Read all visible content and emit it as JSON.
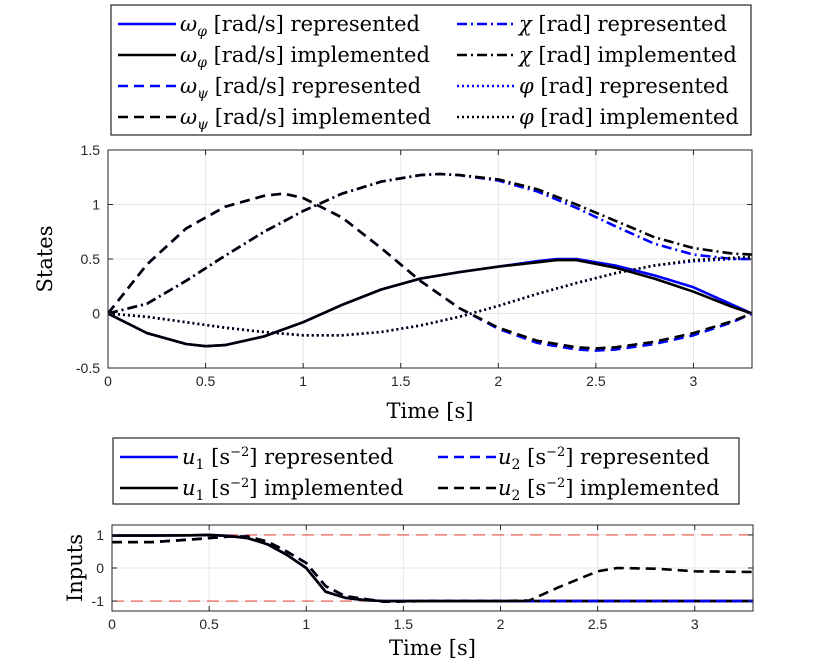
{
  "colors": {
    "represented": "#0000ff",
    "implemented": "#000000",
    "bounds": "#e8504a",
    "grid": "#e6e6e6",
    "axis": "#262626"
  },
  "chart_data": [
    {
      "id": "states",
      "type": "line",
      "xlabel": "Time [s]",
      "ylabel": "States",
      "xlim": [
        0,
        3.3
      ],
      "ylim": [
        -0.5,
        1.5
      ],
      "xticks": [
        0,
        0.5,
        1,
        1.5,
        2,
        2.5,
        3
      ],
      "xtick_labels": [
        "0",
        "0.5",
        "1",
        "1.5",
        "2",
        "2.5",
        "3"
      ],
      "yticks": [
        -0.5,
        0,
        0.5,
        1,
        1.5
      ],
      "ytick_labels": [
        "-0.5",
        "0",
        "0.5",
        "1",
        "1.5"
      ],
      "grid": true,
      "legend_position": "top, outside, two columns",
      "legend": [
        {
          "symbol": "ω",
          "sub": "φ",
          "unit": " [rad/s]",
          "label": "represented",
          "style": "solid",
          "color": "#0000ff"
        },
        {
          "symbol": "ω",
          "sub": "φ",
          "unit": " [rad/s]",
          "label": "implemented",
          "style": "solid",
          "color": "#000000"
        },
        {
          "symbol": "ω",
          "sub": "ψ",
          "unit": " [rad/s]",
          "label": "represented",
          "style": "dashed",
          "color": "#0000ff"
        },
        {
          "symbol": "ω",
          "sub": "ψ",
          "unit": " [rad/s]",
          "label": "implemented",
          "style": "dashed",
          "color": "#000000"
        },
        {
          "symbol": "χ",
          "sub": "",
          "unit": " [rad]",
          "label": "represented",
          "style": "dashdot",
          "color": "#0000ff"
        },
        {
          "symbol": "χ",
          "sub": "",
          "unit": " [rad]",
          "label": "implemented",
          "style": "dashdot",
          "color": "#000000"
        },
        {
          "symbol": "φ",
          "sub": "",
          "unit": " [rad]",
          "label": "represented",
          "style": "dotted",
          "color": "#0000ff"
        },
        {
          "symbol": "φ",
          "sub": "",
          "unit": " [rad]",
          "label": "implemented",
          "style": "dotted",
          "color": "#000000"
        }
      ],
      "series": [
        {
          "name": "ω_φ [rad/s] represented",
          "style": "solid",
          "color": "#0000ff",
          "x": [
            0,
            0.2,
            0.4,
            0.5,
            0.6,
            0.8,
            1.0,
            1.2,
            1.4,
            1.6,
            1.8,
            2.0,
            2.2,
            2.3,
            2.4,
            2.6,
            2.8,
            3.0,
            3.2,
            3.3
          ],
          "y": [
            0,
            -0.18,
            -0.28,
            -0.3,
            -0.29,
            -0.21,
            -0.08,
            0.08,
            0.22,
            0.32,
            0.38,
            0.43,
            0.48,
            0.5,
            0.5,
            0.44,
            0.35,
            0.24,
            0.08,
            0
          ]
        },
        {
          "name": "ω_φ [rad/s] implemented",
          "style": "solid",
          "color": "#000000",
          "x": [
            0,
            0.2,
            0.4,
            0.5,
            0.6,
            0.8,
            1.0,
            1.2,
            1.4,
            1.6,
            1.8,
            2.0,
            2.2,
            2.3,
            2.4,
            2.6,
            2.8,
            3.0,
            3.2,
            3.3
          ],
          "y": [
            0,
            -0.18,
            -0.28,
            -0.3,
            -0.29,
            -0.21,
            -0.08,
            0.08,
            0.22,
            0.32,
            0.38,
            0.43,
            0.47,
            0.49,
            0.49,
            0.42,
            0.32,
            0.2,
            0.06,
            0
          ]
        },
        {
          "name": "ω_ψ [rad/s] represented",
          "style": "dashed",
          "color": "#0000ff",
          "x": [
            0,
            0.2,
            0.4,
            0.6,
            0.8,
            0.9,
            1.0,
            1.2,
            1.4,
            1.6,
            1.8,
            2.0,
            2.2,
            2.4,
            2.5,
            2.6,
            2.8,
            3.0,
            3.2,
            3.3
          ],
          "y": [
            0,
            0.45,
            0.78,
            0.98,
            1.08,
            1.1,
            1.06,
            0.88,
            0.6,
            0.3,
            0.05,
            -0.14,
            -0.27,
            -0.33,
            -0.34,
            -0.33,
            -0.28,
            -0.2,
            -0.08,
            0
          ]
        },
        {
          "name": "ω_ψ [rad/s] implemented",
          "style": "dashed",
          "color": "#000000",
          "x": [
            0,
            0.2,
            0.4,
            0.6,
            0.8,
            0.9,
            1.0,
            1.2,
            1.4,
            1.6,
            1.8,
            2.0,
            2.2,
            2.4,
            2.5,
            2.6,
            2.8,
            3.0,
            3.2,
            3.3
          ],
          "y": [
            0,
            0.45,
            0.78,
            0.98,
            1.08,
            1.1,
            1.06,
            0.88,
            0.6,
            0.3,
            0.05,
            -0.13,
            -0.25,
            -0.31,
            -0.32,
            -0.31,
            -0.26,
            -0.18,
            -0.07,
            0
          ]
        },
        {
          "name": "χ [rad] represented",
          "style": "dashdot",
          "color": "#0000ff",
          "x": [
            0,
            0.2,
            0.4,
            0.6,
            0.8,
            1.0,
            1.2,
            1.4,
            1.6,
            1.7,
            1.8,
            2.0,
            2.2,
            2.4,
            2.6,
            2.8,
            3.0,
            3.2,
            3.3
          ],
          "y": [
            0,
            0.09,
            0.3,
            0.53,
            0.75,
            0.94,
            1.1,
            1.21,
            1.27,
            1.28,
            1.27,
            1.22,
            1.12,
            0.97,
            0.8,
            0.64,
            0.54,
            0.5,
            0.5
          ]
        },
        {
          "name": "χ [rad] implemented",
          "style": "dashdot",
          "color": "#000000",
          "x": [
            0,
            0.2,
            0.4,
            0.6,
            0.8,
            1.0,
            1.2,
            1.4,
            1.6,
            1.7,
            1.8,
            2.0,
            2.2,
            2.4,
            2.6,
            2.8,
            3.0,
            3.2,
            3.3
          ],
          "y": [
            0,
            0.09,
            0.3,
            0.53,
            0.75,
            0.94,
            1.1,
            1.21,
            1.27,
            1.28,
            1.27,
            1.23,
            1.14,
            1.0,
            0.85,
            0.7,
            0.6,
            0.55,
            0.54
          ]
        },
        {
          "name": "φ [rad] represented",
          "style": "dotted",
          "color": "#0000ff",
          "x": [
            0,
            0.2,
            0.4,
            0.6,
            0.8,
            1.0,
            1.1,
            1.2,
            1.4,
            1.6,
            1.8,
            2.0,
            2.2,
            2.4,
            2.6,
            2.8,
            3.0,
            3.2,
            3.3
          ],
          "y": [
            0,
            -0.03,
            -0.08,
            -0.13,
            -0.17,
            -0.2,
            -0.2,
            -0.2,
            -0.17,
            -0.11,
            -0.03,
            0.07,
            0.18,
            0.28,
            0.37,
            0.44,
            0.48,
            0.5,
            0.5
          ]
        },
        {
          "name": "φ [rad] implemented",
          "style": "dotted",
          "color": "#000000",
          "x": [
            0,
            0.2,
            0.4,
            0.6,
            0.8,
            1.0,
            1.1,
            1.2,
            1.4,
            1.6,
            1.8,
            2.0,
            2.2,
            2.4,
            2.6,
            2.8,
            3.0,
            3.2,
            3.3
          ],
          "y": [
            0,
            -0.03,
            -0.08,
            -0.13,
            -0.17,
            -0.2,
            -0.2,
            -0.2,
            -0.17,
            -0.11,
            -0.03,
            0.07,
            0.18,
            0.28,
            0.37,
            0.44,
            0.49,
            0.51,
            0.52
          ]
        }
      ]
    },
    {
      "id": "inputs",
      "type": "line",
      "xlabel": "Time [s]",
      "ylabel": "Inputs",
      "xlim": [
        0,
        3.3
      ],
      "ylim": [
        -1.3,
        1.3
      ],
      "xticks": [
        0,
        0.5,
        1,
        1.5,
        2,
        2.5,
        3
      ],
      "xtick_labels": [
        "0",
        "0.5",
        "1",
        "1.5",
        "2",
        "2.5",
        "3"
      ],
      "yticks": [
        -1,
        0,
        1
      ],
      "ytick_labels": [
        "-1",
        "0",
        "1"
      ],
      "grid": true,
      "legend_position": "top, outside, two columns",
      "legend": [
        {
          "symbol": "u",
          "sub": "1",
          "unit": " [s",
          "sup": "−2",
          "unit_end": "]",
          "label": "represented",
          "style": "solid",
          "color": "#0000ff"
        },
        {
          "symbol": "u",
          "sub": "1",
          "unit": " [s",
          "sup": "−2",
          "unit_end": "]",
          "label": "implemented",
          "style": "solid",
          "color": "#000000"
        },
        {
          "symbol": "u",
          "sub": "2",
          "unit": " [s",
          "sup": "−2",
          "unit_end": "]",
          "label": "represented",
          "style": "dashed",
          "color": "#0000ff"
        },
        {
          "symbol": "u",
          "sub": "2",
          "unit": " [s",
          "sup": "−2",
          "unit_end": "]",
          "label": "implemented",
          "style": "dashed",
          "color": "#000000"
        }
      ],
      "bounds": [
        1,
        -1
      ],
      "series": [
        {
          "name": "u1 [s^-2] represented",
          "style": "solid",
          "color": "#0000ff",
          "x": [
            0,
            0.2,
            0.4,
            0.5,
            0.6,
            0.7,
            0.8,
            0.9,
            1.0,
            1.1,
            1.2,
            1.3,
            1.4,
            1.6,
            2.0,
            2.4,
            2.8,
            3.3
          ],
          "y": [
            0.98,
            0.98,
            0.99,
            1.0,
            0.97,
            0.9,
            0.72,
            0.4,
            0.0,
            -0.72,
            -0.9,
            -0.97,
            -1.0,
            -1.0,
            -1.0,
            -1.0,
            -1.0,
            -1.0
          ]
        },
        {
          "name": "u1 [s^-2] implemented",
          "style": "solid",
          "color": "#000000",
          "x": [
            0,
            0.2,
            0.4,
            0.5,
            0.6,
            0.7,
            0.8,
            0.9,
            1.0,
            1.1,
            1.2,
            1.3,
            1.4,
            1.6,
            2.0,
            2.4,
            2.8,
            3.3
          ],
          "y": [
            0.98,
            0.98,
            0.99,
            1.0,
            0.97,
            0.9,
            0.72,
            0.4,
            0.0,
            -0.72,
            -0.9,
            -0.97,
            -1.0,
            -1.0,
            -1.0,
            -1.0,
            -1.0,
            -1.0
          ]
        },
        {
          "name": "u2 [s^-2] represented",
          "style": "dashed",
          "color": "#0000ff",
          "x": [
            0,
            0.2,
            0.4,
            0.6,
            0.7,
            0.8,
            0.9,
            1.0,
            1.1,
            1.2,
            1.4,
            1.6,
            2.0,
            2.4,
            2.8,
            3.3
          ],
          "y": [
            0.78,
            0.78,
            0.86,
            0.95,
            0.95,
            0.8,
            0.5,
            0.15,
            -0.55,
            -0.85,
            -1.02,
            -1.0,
            -1.0,
            -1.0,
            -1.0,
            -1.0
          ]
        },
        {
          "name": "u2 [s^-2] implemented",
          "style": "dashed",
          "color": "#000000",
          "x": [
            0,
            0.2,
            0.4,
            0.6,
            0.7,
            0.8,
            0.9,
            1.0,
            1.1,
            1.2,
            1.4,
            1.6,
            2.0,
            2.15,
            2.3,
            2.5,
            2.6,
            2.8,
            3.0,
            3.3
          ],
          "y": [
            0.78,
            0.78,
            0.86,
            0.95,
            0.95,
            0.8,
            0.5,
            0.15,
            -0.55,
            -0.85,
            -1.02,
            -1.0,
            -1.0,
            -0.98,
            -0.58,
            -0.1,
            0.0,
            -0.02,
            -0.1,
            -0.12
          ]
        }
      ]
    }
  ]
}
